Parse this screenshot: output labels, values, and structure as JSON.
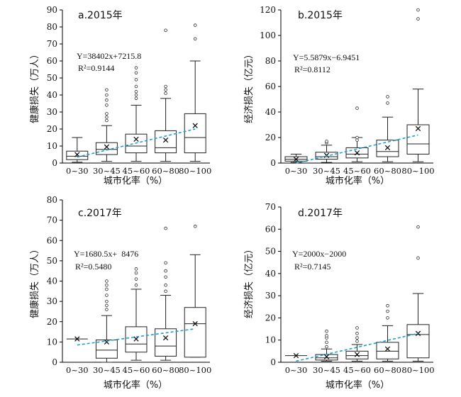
{
  "chart_data": [
    {
      "type": "box",
      "panel_label": "a.2015年",
      "ylabel": "健康损失（万人）",
      "xlabel": "城市化率（%）",
      "categories": [
        "0~30",
        "30~45",
        "45~60",
        "60~80",
        "80~100"
      ],
      "ylim": [
        0,
        90
      ],
      "yticks": [
        0,
        10,
        20,
        30,
        40,
        50,
        60,
        70,
        80,
        90
      ],
      "boxes": [
        {
          "min": 0.5,
          "q1": 2,
          "median": 4,
          "q3": 7,
          "max": 15,
          "mean": 5,
          "outliers": []
        },
        {
          "min": 1,
          "q1": 5,
          "median": 8,
          "q3": 12,
          "max": 22,
          "mean": 9.5,
          "outliers": [
            25,
            27,
            29,
            34,
            37,
            40,
            43
          ]
        },
        {
          "min": 1,
          "q1": 6,
          "median": 10,
          "q3": 17,
          "max": 34,
          "mean": 14,
          "outliers": [
            38,
            40,
            42,
            45,
            49,
            53,
            56
          ]
        },
        {
          "min": 1,
          "q1": 6,
          "median": 9,
          "q3": 19,
          "max": 38,
          "mean": 13.5,
          "outliers": [
            41,
            43,
            45,
            78
          ]
        },
        {
          "min": 1,
          "q1": 6,
          "median": 15,
          "q3": 29,
          "max": 60,
          "mean": 22,
          "outliers": [
            73,
            81
          ]
        }
      ],
      "trend": {
        "start": 3.5,
        "end": 20
      },
      "equation": "Y=38402x+7215.8",
      "r2": "R²=0.9144"
    },
    {
      "type": "box",
      "panel_label": "b.2015年",
      "ylabel": "经济损失（亿元）",
      "xlabel": "城市化率（%）",
      "categories": [
        "0~30",
        "30~45",
        "45~60",
        "60~80",
        "80~100"
      ],
      "ylim": [
        0,
        120
      ],
      "yticks": [
        0,
        20,
        40,
        60,
        80,
        100,
        120
      ],
      "boxes": [
        {
          "min": 0.5,
          "q1": 1.5,
          "median": 3,
          "q3": 5,
          "max": 7,
          "mean": 3,
          "outliers": []
        },
        {
          "min": 0.5,
          "q1": 3,
          "median": 5,
          "q3": 8.5,
          "max": 14,
          "mean": 6,
          "outliers": [
            16,
            17
          ]
        },
        {
          "min": 1,
          "q1": 4,
          "median": 7,
          "q3": 12,
          "max": 20,
          "mean": 8,
          "outliers": [
            18,
            20,
            43
          ]
        },
        {
          "min": 1,
          "q1": 5,
          "median": 9,
          "q3": 18,
          "max": 36,
          "mean": 12,
          "outliers": [
            47,
            52
          ]
        },
        {
          "min": 1,
          "q1": 7,
          "median": 15,
          "q3": 30,
          "max": 58,
          "mean": 27,
          "outliers": [
            113,
            120
          ]
        }
      ],
      "trend": {
        "start": 0,
        "end": 22
      },
      "equation": "Y=5.5879x−6.9451",
      "r2": "R²=0.8112"
    },
    {
      "type": "box",
      "panel_label": "c.2017年",
      "ylabel": "健康损失（万人）",
      "xlabel": "城市化率（%）",
      "categories": [
        "0~30",
        "30~45",
        "45~60",
        "60~80",
        "80~100"
      ],
      "ylim": [
        0,
        80
      ],
      "yticks": [
        0,
        10,
        20,
        30,
        40,
        50,
        60,
        70,
        80
      ],
      "boxes": [
        {
          "min": 11.5,
          "q1": 11.5,
          "median": 11.5,
          "q3": 11.5,
          "max": 11.5,
          "mean": 11.5,
          "outliers": []
        },
        {
          "min": 0,
          "q1": 2,
          "median": 6,
          "q3": 11,
          "max": 23,
          "mean": 10,
          "outliers": [
            26,
            28,
            30,
            33,
            36,
            38,
            40
          ]
        },
        {
          "min": 1,
          "q1": 5,
          "median": 9,
          "q3": 17.5,
          "max": 36,
          "mean": 11.5,
          "outliers": [
            38,
            41,
            44,
            46
          ]
        },
        {
          "min": 1,
          "q1": 3,
          "median": 8,
          "q3": 16.5,
          "max": 33,
          "mean": 12,
          "outliers": [
            35,
            38,
            42,
            45,
            49,
            66
          ]
        },
        {
          "min": 2.5,
          "q1": 2.5,
          "median": 19,
          "q3": 27,
          "max": 53,
          "mean": 19,
          "outliers": [
            67
          ]
        }
      ],
      "trend": {
        "start": 8.5,
        "end": 16.5
      },
      "equation": "Y=1680.5x+  8476",
      "r2": "R²=0.5480"
    },
    {
      "type": "box",
      "panel_label": "d.2017年",
      "ylabel": "经济损失（亿元）",
      "xlabel": "城市化率（%）",
      "categories": [
        "0~30",
        "30~45",
        "45~60",
        "60~80",
        "80~100"
      ],
      "ylim": [
        0,
        70
      ],
      "yticks": [
        0,
        10,
        20,
        30,
        40,
        50,
        60,
        70
      ],
      "boxes": [
        {
          "min": 3,
          "q1": 3,
          "median": 3,
          "q3": 3,
          "max": 3,
          "mean": 3,
          "outliers": []
        },
        {
          "min": 0.5,
          "q1": 1,
          "median": 2,
          "q3": 3.5,
          "max": 6,
          "mean": 2.5,
          "outliers": [
            7,
            9,
            11,
            12,
            14
          ]
        },
        {
          "min": 0.5,
          "q1": 1.5,
          "median": 3,
          "q3": 5,
          "max": 8,
          "mean": 3.5,
          "outliers": [
            9.5,
            11,
            13,
            15.5
          ]
        },
        {
          "min": 0.5,
          "q1": 1.5,
          "median": 5,
          "q3": 9,
          "max": 16.5,
          "mean": 6,
          "outliers": [
            20,
            23,
            25.5
          ]
        },
        {
          "min": 0.5,
          "q1": 2,
          "median": 12.5,
          "q3": 17,
          "max": 31,
          "mean": 13,
          "outliers": [
            47,
            61
          ]
        }
      ],
      "trend": {
        "start": 0.5,
        "end": 13
      },
      "equation": "Y=2000x−2000",
      "r2": "R²=0.7145"
    }
  ]
}
